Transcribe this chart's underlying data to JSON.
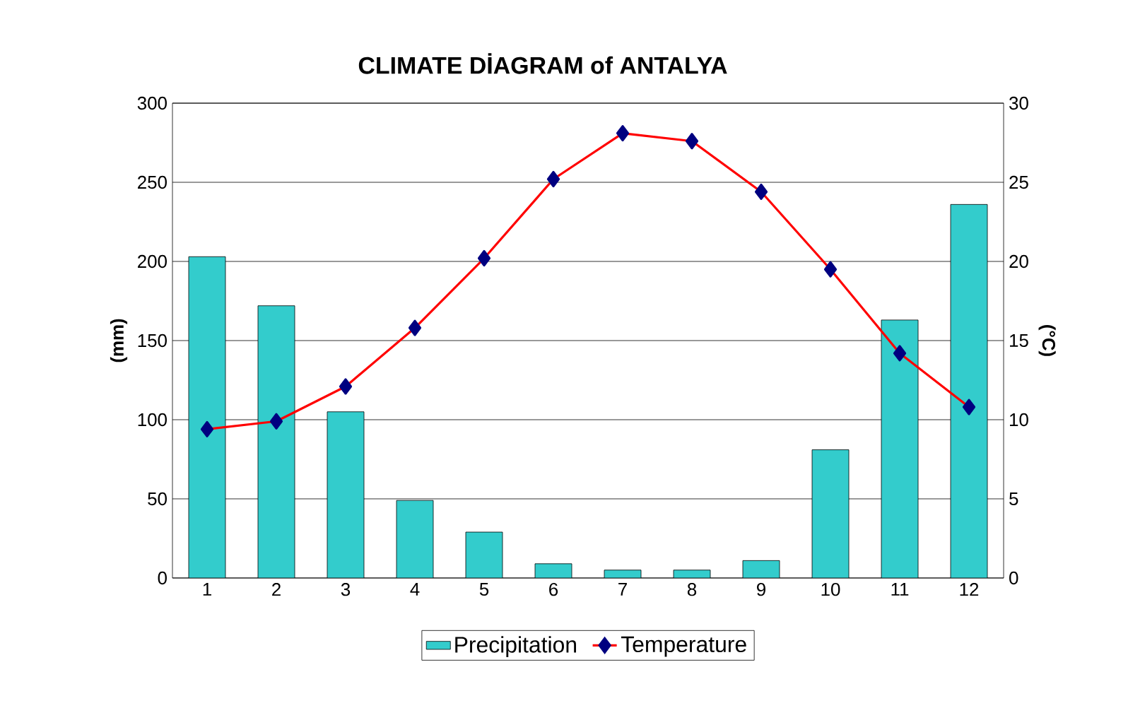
{
  "chart_data": {
    "type": "bar",
    "title": "CLIMATE  DİAGRAM of ANTALYA",
    "ylabel": "(mm)",
    "y2label": "(°C)",
    "categories": [
      "1",
      "2",
      "3",
      "4",
      "5",
      "6",
      "7",
      "8",
      "9",
      "10",
      "11",
      "12"
    ],
    "series": [
      {
        "name": "Precipitation",
        "color": "#33cccc",
        "values": [
          203,
          172,
          105,
          49,
          29,
          9,
          5,
          5,
          11,
          81,
          163,
          236
        ]
      },
      {
        "name": "Temperature",
        "type": "line",
        "axis": "y2",
        "color": "#ff0000",
        "values": [
          9.4,
          9.9,
          12.1,
          15.8,
          20.2,
          25.2,
          28.1,
          27.6,
          24.4,
          19.5,
          14.2,
          10.8
        ]
      }
    ],
    "ylim": [
      0,
      300
    ],
    "yticks": [
      0,
      50,
      100,
      150,
      200,
      250,
      300
    ],
    "y2lim": [
      0,
      30
    ],
    "y2ticks": [
      0,
      5,
      10,
      15,
      20,
      25,
      30
    ],
    "grid": "y",
    "legend": "bottom",
    "marker": "diamond",
    "line_style": "solid"
  }
}
